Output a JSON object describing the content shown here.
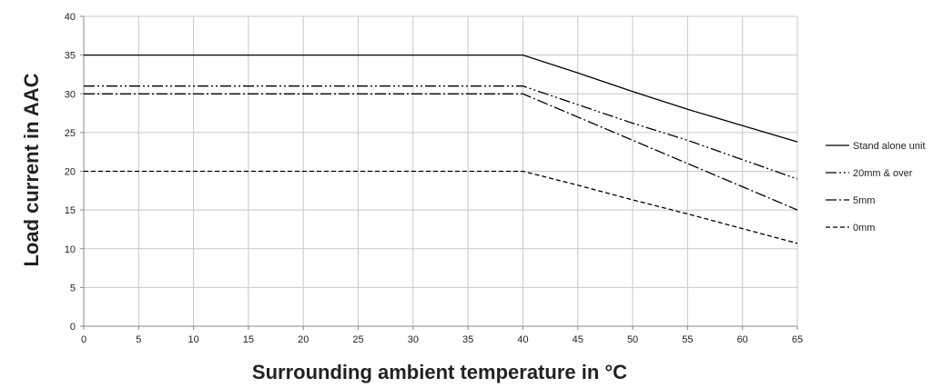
{
  "chart_data": {
    "type": "line",
    "title": "",
    "xlabel": "Surrounding ambient temperature in °C",
    "ylabel": "Load current in AAC",
    "xlim": [
      0,
      65
    ],
    "ylim": [
      0,
      40
    ],
    "x_ticks": [
      0,
      5,
      10,
      15,
      20,
      25,
      30,
      35,
      40,
      45,
      50,
      55,
      60,
      65
    ],
    "y_ticks": [
      0,
      5,
      10,
      15,
      20,
      25,
      30,
      35,
      40
    ],
    "grid": true,
    "legend_position": "right",
    "series": [
      {
        "name": "Stand alone unit",
        "dash": "solid",
        "points": [
          [
            0,
            35
          ],
          [
            40,
            35
          ],
          [
            45,
            32.7
          ],
          [
            50,
            30.3
          ],
          [
            55,
            28
          ],
          [
            60,
            25.9
          ],
          [
            65,
            23.8
          ]
        ]
      },
      {
        "name": "20mm & over",
        "dash": "dash-dot-dot",
        "points": [
          [
            0,
            31
          ],
          [
            40,
            31
          ],
          [
            45,
            28.6
          ],
          [
            50,
            26.2
          ],
          [
            55,
            24
          ],
          [
            60,
            21.5
          ],
          [
            65,
            19
          ]
        ]
      },
      {
        "name": "5mm",
        "dash": "dash-dot",
        "points": [
          [
            0,
            30
          ],
          [
            40,
            30
          ],
          [
            45,
            27
          ],
          [
            50,
            24
          ],
          [
            55,
            21
          ],
          [
            60,
            18
          ],
          [
            65,
            15
          ]
        ]
      },
      {
        "name": "0mm",
        "dash": "dashed",
        "points": [
          [
            0,
            20
          ],
          [
            40,
            20
          ],
          [
            45,
            18.2
          ],
          [
            50,
            16.3
          ],
          [
            55,
            14.5
          ],
          [
            60,
            12.6
          ],
          [
            65,
            10.7
          ]
        ]
      }
    ]
  }
}
